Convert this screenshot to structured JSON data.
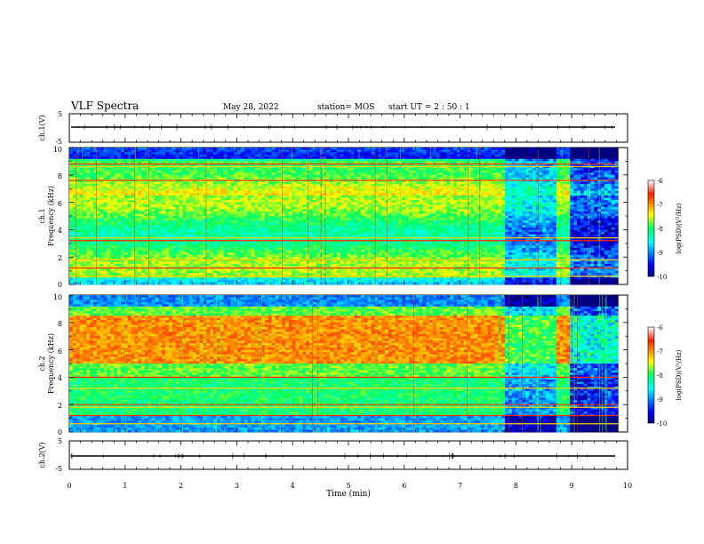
{
  "header": {
    "title": "VLF Spectra",
    "date": "May 28, 2022",
    "station": "station= MOS",
    "start": "start  UT =   2 : 50 : 1"
  },
  "chart_data": [
    {
      "type": "line",
      "panel": "ch1_waveform",
      "ylabel": "ch.1(V)",
      "ylim": [
        -5,
        5
      ],
      "yticks": [
        "5",
        "-5"
      ],
      "xlim": [
        0,
        10
      ],
      "series": [
        {
          "values_description_free": true,
          "x": [
            0,
            9.83
          ],
          "y": [
            0,
            0
          ]
        }
      ]
    },
    {
      "type": "heatmap",
      "panel": "ch1_spectrogram",
      "ylabel": "ch.1 Frequency (kHz)",
      "ylabel_line1": "ch.1",
      "ylabel_line2": "Frequency (kHz)",
      "ylim": [
        0,
        10
      ],
      "yticks": [
        "0",
        "2",
        "4",
        "6",
        "8",
        "10"
      ],
      "xlim": [
        0,
        10
      ],
      "data_end_min": 9.83,
      "colorbar": {
        "label": "log(PSD)(V²/Hz)",
        "range": [
          -10,
          -6
        ],
        "ticks": [
          "-6",
          "-7",
          "-8",
          "-9",
          "-10"
        ]
      },
      "bands_khz": [
        0.6,
        1.2,
        1.8,
        3.2,
        3.4,
        7.6,
        8.6,
        8.8
      ]
    },
    {
      "type": "heatmap",
      "panel": "ch2_spectrogram",
      "ylabel": "ch.2 Frequency (kHz)",
      "ylabel_line1": "ch.2",
      "ylabel_line2": "Frequency (kHz)",
      "ylim": [
        0,
        10
      ],
      "yticks": [
        "0",
        "2",
        "4",
        "6",
        "8",
        "10"
      ],
      "xlim": [
        0,
        10
      ],
      "data_end_min": 9.83,
      "colorbar": {
        "label": "log(PSD)(V²/Hz)",
        "range": [
          -10,
          -6
        ],
        "ticks": [
          "-6",
          "-7",
          "-8",
          "-9",
          "-10"
        ]
      },
      "bands_khz": [
        0.6,
        1.2,
        1.8,
        2.0,
        3.2,
        4.0
      ]
    },
    {
      "type": "line",
      "panel": "ch2_waveform",
      "ylabel": "ch.2(V)",
      "ylim": [
        -5,
        5
      ],
      "yticks": [
        "5",
        "-5"
      ],
      "xlim": [
        0,
        10
      ],
      "xlabel": "Time (min)",
      "xticks": [
        "0",
        "1",
        "2",
        "3",
        "4",
        "5",
        "6",
        "7",
        "8",
        "9",
        "10"
      ],
      "series": [
        {
          "x": [
            0,
            9.83
          ],
          "y": [
            0,
            0
          ]
        }
      ]
    }
  ],
  "colors": {
    "axis": "#000000",
    "background": "#ffffff"
  }
}
